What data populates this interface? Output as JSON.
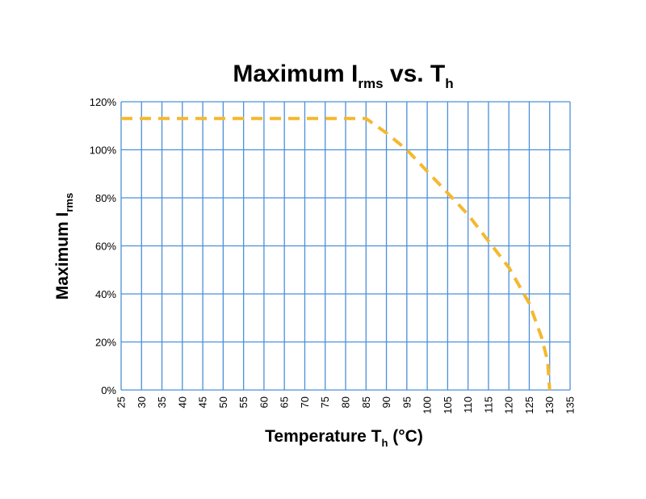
{
  "chart_data": {
    "type": "line",
    "title": {
      "main": "Maximum I",
      "subscript": "rms",
      "middle": " vs. T",
      "subscript2": "h"
    },
    "xlabel": {
      "main": "Temperature T",
      "subscript": "h",
      "suffix": " (°C)"
    },
    "ylabel": {
      "main": "Maximum I",
      "subscript": "rms"
    },
    "xlim": [
      25,
      135
    ],
    "ylim": [
      0,
      120
    ],
    "x_ticks": [
      25,
      30,
      35,
      40,
      45,
      50,
      55,
      60,
      65,
      70,
      75,
      80,
      85,
      90,
      95,
      100,
      105,
      110,
      115,
      120,
      125,
      130,
      135
    ],
    "x_tick_labels": [
      "25",
      "30",
      "35",
      "40",
      "45",
      "50",
      "55",
      "60",
      "65",
      "70",
      "75",
      "80",
      "85",
      "90",
      "95",
      "100",
      "105",
      "110",
      "115",
      "120",
      "125",
      "130",
      "135"
    ],
    "y_ticks": [
      0,
      20,
      40,
      60,
      80,
      100,
      120
    ],
    "y_tick_labels": [
      "0%",
      "20%",
      "40%",
      "60%",
      "80%",
      "100%",
      "120%"
    ],
    "grid": true,
    "series": [
      {
        "name": "Maximum Irms",
        "style": "dashed",
        "color": "#F5B82E",
        "x": [
          25,
          85,
          90,
          95,
          100,
          105,
          110,
          115,
          120,
          125,
          128,
          129.5,
          130
        ],
        "y": [
          113,
          113,
          107,
          100,
          91,
          82,
          73,
          62,
          51,
          36,
          22,
          12,
          0
        ]
      }
    ],
    "grid_color": "#4A90D9"
  }
}
